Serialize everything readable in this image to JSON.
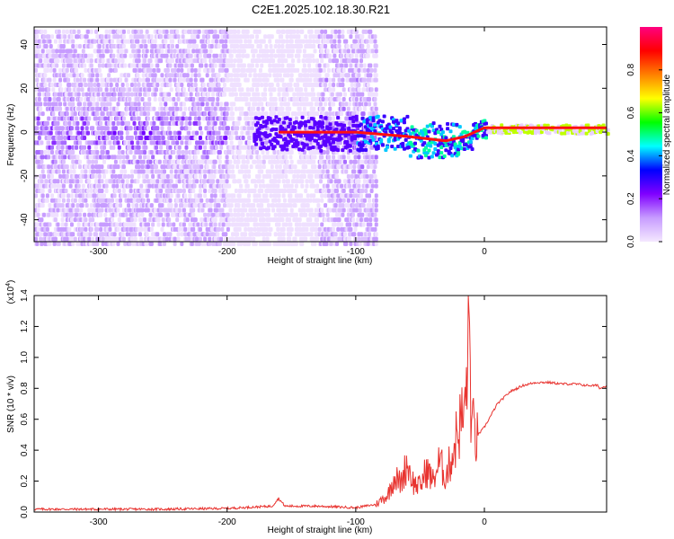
{
  "title": "C2E1.2025.102.18.30.R21",
  "chart_data": [
    {
      "type": "heatmap",
      "xlabel": "Height of straight line (km)",
      "ylabel": "Frequency (Hz)",
      "xlim": [
        -350,
        95
      ],
      "ylim": [
        -50,
        48
      ],
      "x_ticks": [
        "-300",
        "-200",
        "-100",
        "0"
      ],
      "y_ticks": [
        "-40",
        "-20",
        "0",
        "20",
        "40"
      ],
      "colorbar": {
        "label": "Normalized spectral amplitude",
        "range": [
          0,
          1
        ],
        "ticks": [
          "0.0",
          "0.2",
          "0.4",
          "0.6",
          "0.8"
        ],
        "colors": [
          "#f4e8ff",
          "#c79cff",
          "#8000ff",
          "#0000ff",
          "#00ffff",
          "#00ff00",
          "#ffff00",
          "#ff8000",
          "#ff0000",
          "#ff0080"
        ]
      },
      "signal_trace": [
        {
          "x": -160,
          "y": 0
        },
        {
          "x": -100,
          "y": 0
        },
        {
          "x": -60,
          "y": -2
        },
        {
          "x": -30,
          "y": -4
        },
        {
          "x": -15,
          "y": -2
        },
        {
          "x": 0,
          "y": 2
        },
        {
          "x": 20,
          "y": 2
        },
        {
          "x": 95,
          "y": 2
        }
      ],
      "grid": false
    },
    {
      "type": "line",
      "xlabel": "Height of straight line (km)",
      "ylabel": "SNR (10 * v/v)",
      "y_multiplier_label": "(x10",
      "y_multiplier_exponent": "4",
      "y_multiplier_close": ")",
      "xlim": [
        -350,
        95
      ],
      "ylim": [
        0,
        1.4
      ],
      "x_ticks": [
        "-300",
        "-200",
        "-100",
        "0"
      ],
      "y_ticks": [
        "0.0",
        "0.2",
        "0.4",
        "0.6",
        "0.8",
        "1.0",
        "1.2",
        "1.4"
      ],
      "series_color": "#e8332f",
      "series": [
        {
          "x": [
            -350,
            -300,
            -250,
            -200,
            -165,
            -160,
            -155,
            -130,
            -100,
            -85,
            -75,
            -70,
            -65,
            -60,
            -55,
            -50,
            -45,
            -40,
            -35,
            -30,
            -25,
            -20,
            -15,
            -12,
            -10,
            -5,
            0,
            10,
            20,
            30,
            40,
            50,
            60,
            70,
            80,
            88,
            90,
            95
          ],
          "y": [
            0.02,
            0.02,
            0.02,
            0.025,
            0.04,
            0.09,
            0.04,
            0.04,
            0.03,
            0.05,
            0.12,
            0.25,
            0.2,
            0.35,
            0.2,
            0.18,
            0.3,
            0.22,
            0.35,
            0.25,
            0.4,
            0.6,
            0.7,
            1.4,
            0.6,
            0.5,
            0.55,
            0.7,
            0.78,
            0.82,
            0.84,
            0.84,
            0.83,
            0.83,
            0.82,
            0.82,
            0.8,
            0.82
          ]
        }
      ],
      "grid": false
    }
  ]
}
